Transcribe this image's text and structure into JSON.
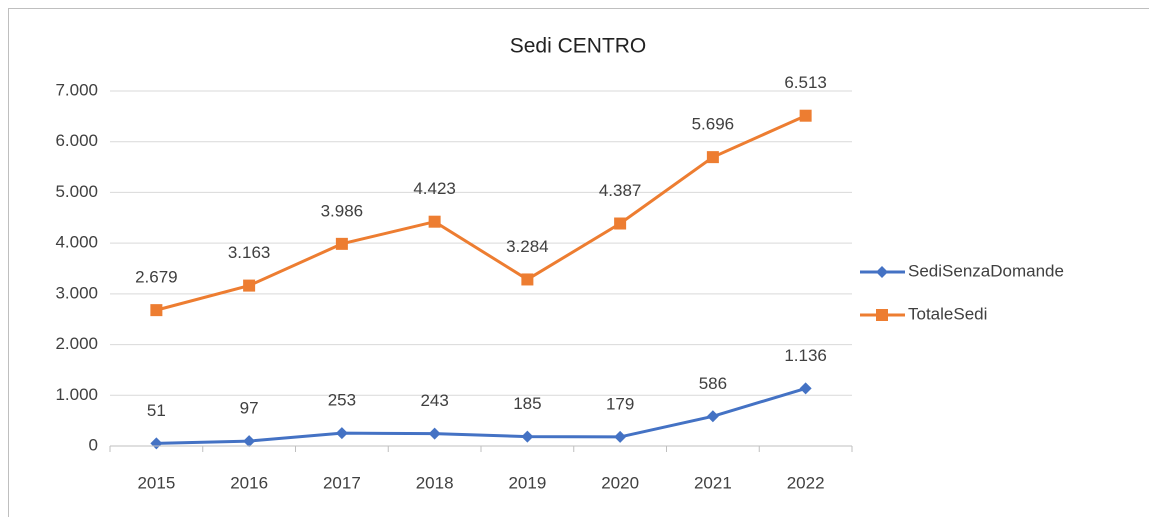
{
  "chart_data": {
    "type": "line",
    "title": "Sedi CENTRO",
    "categories": [
      "2015",
      "2016",
      "2017",
      "2018",
      "2019",
      "2020",
      "2021",
      "2022"
    ],
    "series": [
      {
        "name": "SediSenzaDomande",
        "color": "#4472c4",
        "marker": "diamond",
        "values": [
          51,
          97,
          253,
          243,
          185,
          179,
          586,
          1136
        ],
        "value_labels": [
          "51",
          "97",
          "253",
          "243",
          "185",
          "179",
          "586",
          "1.136"
        ]
      },
      {
        "name": "TotaleSedi",
        "color": "#ed7d31",
        "marker": "square",
        "values": [
          2679,
          3163,
          3986,
          4423,
          3284,
          4387,
          5696,
          6513
        ],
        "value_labels": [
          "2.679",
          "3.163",
          "3.986",
          "4.423",
          "3.284",
          "4.387",
          "5.696",
          "6.513"
        ]
      }
    ],
    "ylim": [
      0,
      7000
    ],
    "yticks": [
      0,
      {
        "value": 1000,
        "label": "1.000"
      },
      {
        "value": 2000,
        "label": "2.000"
      },
      {
        "value": 3000,
        "label": "3.000"
      },
      {
        "value": 4000,
        "label": "4.000"
      },
      {
        "value": 5000,
        "label": "5.000"
      },
      {
        "value": 6000,
        "label": "6.000"
      },
      {
        "value": 7000,
        "label": "7.000"
      }
    ],
    "grid": true,
    "legend": "right"
  }
}
